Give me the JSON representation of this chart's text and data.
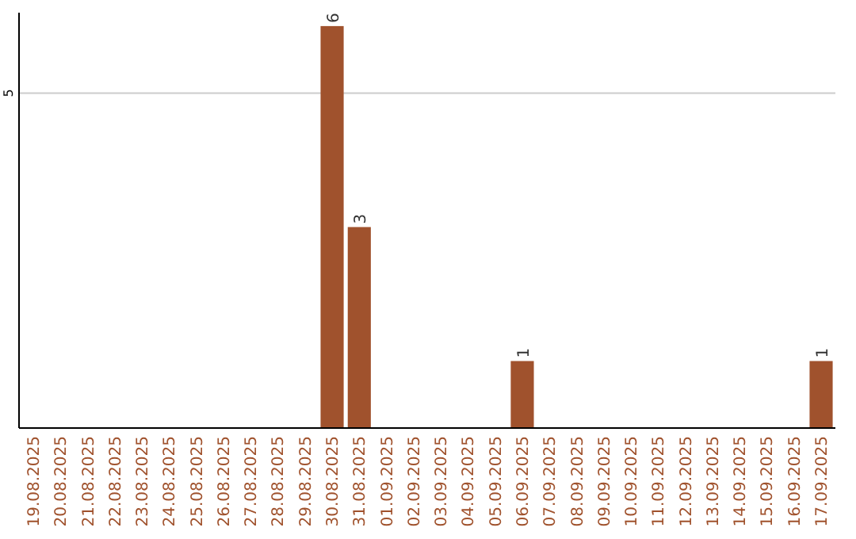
{
  "chart_data": {
    "type": "bar",
    "categories": [
      "19.08.2025",
      "20.08.2025",
      "21.08.2025",
      "22.08.2025",
      "23.08.2025",
      "24.08.2025",
      "25.08.2025",
      "26.08.2025",
      "27.08.2025",
      "28.08.2025",
      "29.08.2025",
      "30.08.2025",
      "31.08.2025",
      "01.09.2025",
      "02.09.2025",
      "03.09.2025",
      "04.09.2025",
      "05.09.2025",
      "06.09.2025",
      "07.09.2025",
      "08.09.2025",
      "09.09.2025",
      "10.09.2025",
      "11.09.2025",
      "12.09.2025",
      "13.09.2025",
      "14.09.2025",
      "15.09.2025",
      "16.09.2025",
      "17.09.2025"
    ],
    "values": [
      0,
      0,
      0,
      0,
      0,
      0,
      0,
      0,
      0,
      0,
      0,
      6,
      3,
      0,
      0,
      0,
      0,
      0,
      1,
      0,
      0,
      0,
      0,
      0,
      0,
      0,
      0,
      0,
      0,
      1
    ],
    "value_labels": [
      null,
      null,
      null,
      null,
      null,
      null,
      null,
      null,
      null,
      null,
      null,
      "6",
      "3",
      null,
      null,
      null,
      null,
      null,
      "1",
      null,
      null,
      null,
      null,
      null,
      null,
      null,
      null,
      null,
      null,
      "1"
    ],
    "color": "#a0522d",
    "ylim": [
      0,
      6.2
    ],
    "yticks": [
      {
        "value": 0,
        "label": null
      },
      5
    ],
    "grid": "y"
  }
}
